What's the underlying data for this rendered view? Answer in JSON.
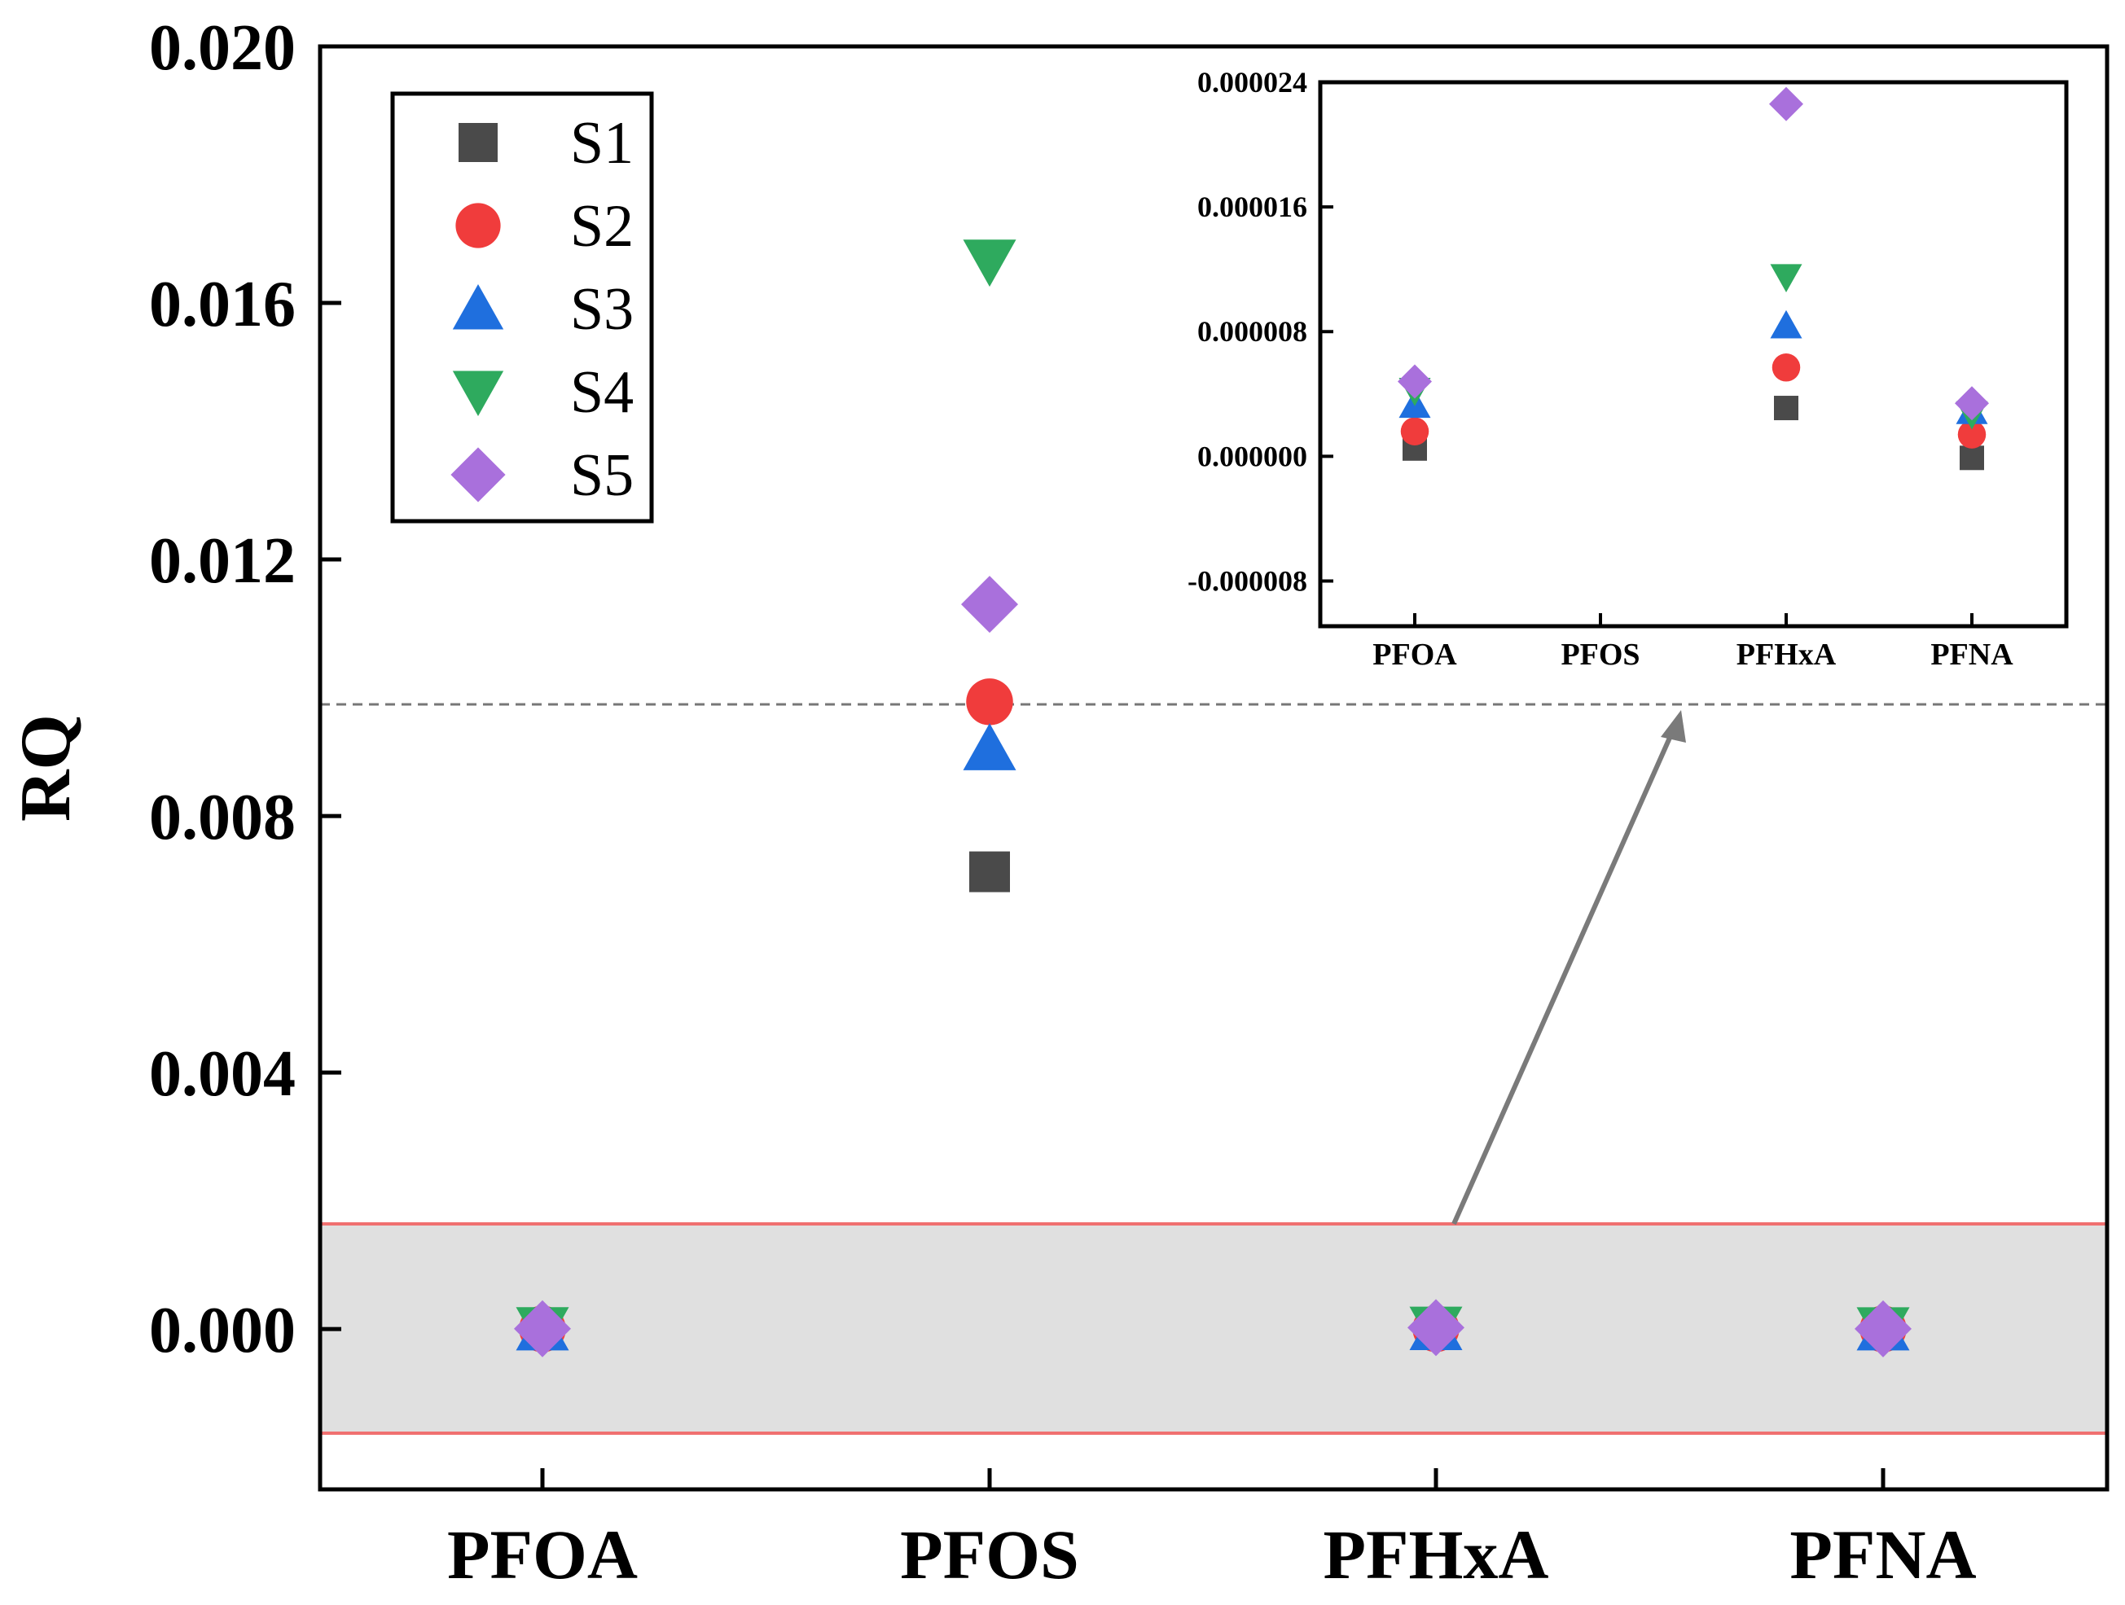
{
  "chart_data": [
    {
      "id": "main",
      "type": "scatter",
      "title": "",
      "xlabel": "",
      "ylabel": "RQ",
      "categories": [
        "PFOA",
        "PFOS",
        "PFHxA",
        "PFNA"
      ],
      "ylim": [
        -0.0025,
        0.02
      ],
      "yticks": [
        0.0,
        0.004,
        0.008,
        0.012,
        0.016,
        0.02
      ],
      "ytick_labels": [
        "0.000",
        "0.004",
        "0.008",
        "0.012",
        "0.016",
        "0.020"
      ],
      "grid": false,
      "legend_position": "top-left",
      "series": [
        {
          "name": "S1",
          "marker": "square",
          "color": "#4a4a4a",
          "values": [
            8e-07,
            0.00713,
            3.6e-06,
            0.0
          ]
        },
        {
          "name": "S2",
          "marker": "circle",
          "color": "#f03c3c",
          "values": [
            1.6e-06,
            0.00978,
            5.8e-06,
            1.5e-06
          ]
        },
        {
          "name": "S3",
          "marker": "triangle-up",
          "color": "#1f6fde",
          "values": [
            3.5e-06,
            0.00905,
            8.5e-06,
            3e-06
          ]
        },
        {
          "name": "S4",
          "marker": "triangle-down",
          "color": "#2eaa5e",
          "values": [
            4.5e-06,
            0.01665,
            1.2e-05,
            2.8e-06
          ]
        },
        {
          "name": "S5",
          "marker": "diamond",
          "color": "#a970dc",
          "values": [
            5e-06,
            0.0113,
            2.26e-05,
            3.5e-06
          ]
        }
      ],
      "annotations": {
        "threshold_line": 0.01,
        "zoom_region": [
          -0.0011,
          0.002
        ]
      }
    },
    {
      "id": "inset",
      "type": "scatter",
      "title": "",
      "xlabel": "",
      "ylabel": "",
      "categories": [
        "PFOA",
        "PFOS",
        "PFHxA",
        "PFNA"
      ],
      "ylim": [
        -1.09e-05,
        2.4e-05
      ],
      "yticks": [
        -8e-06,
        0.0,
        8e-06,
        1.6e-05,
        2.4e-05
      ],
      "ytick_labels": [
        "-0.000008",
        "0.000000",
        "0.000008",
        "0.000016",
        "0.000024"
      ],
      "grid": false,
      "series": [
        {
          "name": "S1",
          "marker": "square",
          "color": "#4a4a4a",
          "values": [
            5e-07,
            null,
            3.1e-06,
            -1e-07
          ]
        },
        {
          "name": "S2",
          "marker": "circle",
          "color": "#f03c3c",
          "values": [
            1.6e-06,
            null,
            5.7e-06,
            1.4e-06
          ]
        },
        {
          "name": "S3",
          "marker": "triangle-up",
          "color": "#1f6fde",
          "values": [
            3.3e-06,
            null,
            8.4e-06,
            2.9e-06
          ]
        },
        {
          "name": "S4",
          "marker": "triangle-down",
          "color": "#2eaa5e",
          "values": [
            4.2e-06,
            null,
            1.15e-05,
            2.7e-06
          ]
        },
        {
          "name": "S5",
          "marker": "diamond",
          "color": "#a970dc",
          "values": [
            4.8e-06,
            null,
            2.26e-05,
            3.4e-06
          ]
        }
      ]
    }
  ]
}
